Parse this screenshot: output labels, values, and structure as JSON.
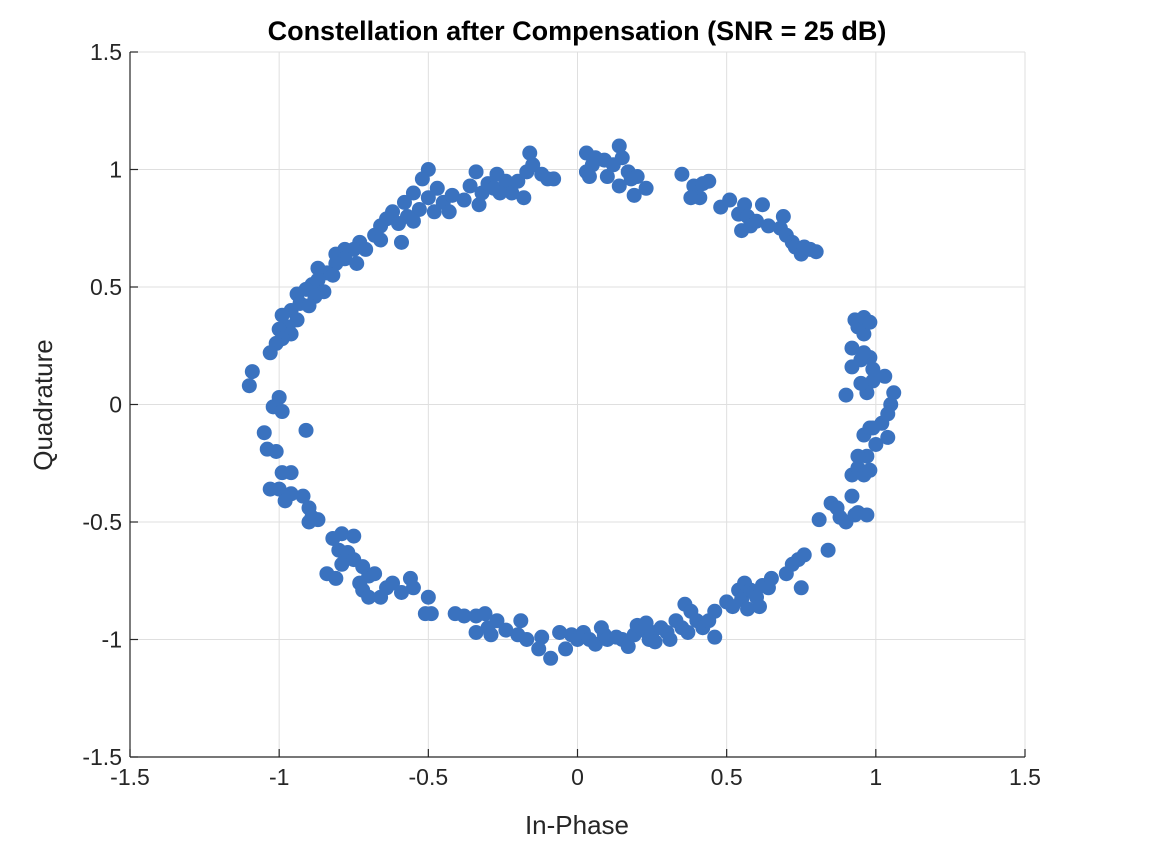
{
  "chart_data": {
    "type": "scatter",
    "title": "Constellation after Compensation (SNR = 25 dB)",
    "xlabel": "In-Phase",
    "ylabel": "Quadrature",
    "xlim": [
      -1.5,
      1.5
    ],
    "ylim": [
      -1.5,
      1.5
    ],
    "xticks": [
      -1.5,
      -1,
      -0.5,
      0,
      0.5,
      1,
      1.5
    ],
    "yticks": [
      -1.5,
      -1,
      -0.5,
      0,
      0.5,
      1,
      1.5
    ],
    "xtick_labels": [
      "-1.5",
      "-1",
      "-0.5",
      "0",
      "0.5",
      "1",
      "1.5"
    ],
    "ytick_labels": [
      "-1.5",
      "-1",
      "-0.5",
      "0",
      "0.5",
      "1",
      "1.5"
    ],
    "grid": true,
    "color": "#3a72bf",
    "series": [
      {
        "points": [
          [
            -0.5,
            1.0
          ],
          [
            -0.52,
            0.96
          ],
          [
            -0.47,
            0.92
          ],
          [
            -0.55,
            0.9
          ],
          [
            -0.5,
            0.88
          ],
          [
            -0.45,
            0.86
          ],
          [
            -0.58,
            0.86
          ],
          [
            -0.53,
            0.83
          ],
          [
            -0.48,
            0.82
          ],
          [
            -0.43,
            0.82
          ],
          [
            -0.57,
            0.8
          ],
          [
            -0.62,
            0.82
          ],
          [
            -0.64,
            0.79
          ],
          [
            -0.6,
            0.77
          ],
          [
            -0.66,
            0.76
          ],
          [
            -0.55,
            0.78
          ],
          [
            -0.68,
            0.72
          ],
          [
            -0.66,
            0.7
          ],
          [
            -0.59,
            0.69
          ],
          [
            -0.73,
            0.69
          ],
          [
            -0.75,
            0.66
          ],
          [
            -0.71,
            0.66
          ],
          [
            -0.78,
            0.66
          ],
          [
            -0.81,
            0.64
          ],
          [
            -0.78,
            0.62
          ],
          [
            -0.74,
            0.6
          ],
          [
            -0.81,
            0.6
          ],
          [
            -0.84,
            0.56
          ],
          [
            -0.87,
            0.58
          ],
          [
            -0.82,
            0.55
          ],
          [
            -0.87,
            0.53
          ],
          [
            -0.89,
            0.51
          ],
          [
            -0.91,
            0.49
          ],
          [
            -0.85,
            0.48
          ],
          [
            -0.88,
            0.46
          ],
          [
            -0.94,
            0.47
          ],
          [
            -0.93,
            0.43
          ],
          [
            -0.9,
            0.42
          ],
          [
            -0.96,
            0.4
          ],
          [
            -0.99,
            0.38
          ],
          [
            -0.94,
            0.36
          ],
          [
            -0.97,
            0.33
          ],
          [
            -1.0,
            0.32
          ],
          [
            -0.96,
            0.3
          ],
          [
            -0.99,
            0.28
          ],
          [
            -1.01,
            0.26
          ],
          [
            -1.03,
            0.22
          ],
          [
            -1.09,
            0.14
          ],
          [
            -1.1,
            0.08
          ],
          [
            -1.0,
            0.03
          ],
          [
            -1.02,
            -0.01
          ],
          [
            -0.99,
            -0.03
          ],
          [
            -0.91,
            -0.11
          ],
          [
            -1.05,
            -0.12
          ],
          [
            -1.04,
            -0.19
          ],
          [
            -1.01,
            -0.2
          ],
          [
            -0.99,
            -0.29
          ],
          [
            -0.96,
            -0.29
          ],
          [
            -1.0,
            -0.36
          ],
          [
            -1.03,
            -0.36
          ],
          [
            -0.96,
            -0.38
          ],
          [
            -0.98,
            -0.41
          ],
          [
            -0.92,
            -0.39
          ],
          [
            -0.9,
            -0.44
          ],
          [
            -0.89,
            -0.48
          ],
          [
            -0.87,
            -0.49
          ],
          [
            -0.9,
            -0.5
          ],
          [
            -0.79,
            -0.55
          ],
          [
            -0.82,
            -0.57
          ],
          [
            -0.75,
            -0.56
          ],
          [
            -0.8,
            -0.62
          ],
          [
            -0.77,
            -0.63
          ],
          [
            -0.75,
            -0.66
          ],
          [
            -0.79,
            -0.68
          ],
          [
            -0.72,
            -0.69
          ],
          [
            -0.84,
            -0.72
          ],
          [
            -0.81,
            -0.74
          ],
          [
            -0.7,
            -0.73
          ],
          [
            -0.68,
            -0.72
          ],
          [
            -0.73,
            -0.76
          ],
          [
            -0.72,
            -0.79
          ],
          [
            -0.7,
            -0.82
          ],
          [
            -0.66,
            -0.82
          ],
          [
            -0.64,
            -0.78
          ],
          [
            -0.62,
            -0.76
          ],
          [
            -0.56,
            -0.74
          ],
          [
            -0.59,
            -0.8
          ],
          [
            -0.55,
            -0.78
          ],
          [
            -0.5,
            -0.82
          ],
          [
            -0.49,
            -0.89
          ],
          [
            -0.51,
            -0.89
          ],
          [
            -0.41,
            -0.89
          ],
          [
            -0.38,
            -0.9
          ],
          [
            -0.34,
            -0.9
          ],
          [
            -0.31,
            -0.89
          ],
          [
            -0.3,
            -0.95
          ],
          [
            -0.27,
            -0.92
          ],
          [
            -0.34,
            -0.97
          ],
          [
            -0.29,
            -0.98
          ],
          [
            -0.24,
            -0.96
          ],
          [
            -0.19,
            -0.92
          ],
          [
            -0.2,
            -0.98
          ],
          [
            -0.17,
            -1.0
          ],
          [
            -0.12,
            -0.99
          ],
          [
            -0.13,
            -1.04
          ],
          [
            -0.09,
            -1.08
          ],
          [
            -0.06,
            -0.97
          ],
          [
            -0.02,
            -0.98
          ],
          [
            0.0,
            -1.0
          ],
          [
            -0.04,
            -1.04
          ],
          [
            0.02,
            -0.97
          ],
          [
            0.04,
            -1.0
          ],
          [
            0.06,
            -1.02
          ],
          [
            0.08,
            -0.95
          ],
          [
            0.09,
            -0.98
          ],
          [
            0.1,
            -1.0
          ],
          [
            0.13,
            -0.99
          ],
          [
            0.15,
            -1.0
          ],
          [
            0.17,
            -1.03
          ],
          [
            0.19,
            -0.98
          ],
          [
            0.2,
            -0.94
          ],
          [
            0.22,
            -0.96
          ],
          [
            0.24,
            -1.0
          ],
          [
            0.25,
            -0.97
          ],
          [
            0.26,
            -1.01
          ],
          [
            0.23,
            -0.93
          ],
          [
            0.28,
            -0.95
          ],
          [
            0.3,
            -0.97
          ],
          [
            0.31,
            -1.0
          ],
          [
            0.33,
            -0.92
          ],
          [
            0.35,
            -0.95
          ],
          [
            0.37,
            -0.97
          ],
          [
            0.36,
            -0.85
          ],
          [
            0.38,
            -0.88
          ],
          [
            0.4,
            -0.92
          ],
          [
            0.42,
            -0.95
          ],
          [
            0.46,
            -0.99
          ],
          [
            0.44,
            -0.92
          ],
          [
            0.46,
            -0.88
          ],
          [
            0.5,
            -0.84
          ],
          [
            0.52,
            -0.86
          ],
          [
            0.54,
            -0.79
          ],
          [
            0.55,
            -0.83
          ],
          [
            0.56,
            -0.76
          ],
          [
            0.58,
            -0.79
          ],
          [
            0.59,
            -0.8
          ],
          [
            0.6,
            -0.82
          ],
          [
            0.61,
            -0.86
          ],
          [
            0.62,
            -0.77
          ],
          [
            0.64,
            -0.78
          ],
          [
            0.57,
            -0.87
          ],
          [
            0.65,
            -0.74
          ],
          [
            0.7,
            -0.72
          ],
          [
            0.72,
            -0.68
          ],
          [
            0.74,
            -0.66
          ],
          [
            0.76,
            -0.64
          ],
          [
            0.75,
            -0.78
          ],
          [
            0.81,
            -0.49
          ],
          [
            0.85,
            -0.42
          ],
          [
            0.84,
            -0.62
          ],
          [
            0.87,
            -0.44
          ],
          [
            0.88,
            -0.48
          ],
          [
            0.9,
            -0.5
          ],
          [
            0.93,
            -0.47
          ],
          [
            0.92,
            -0.39
          ],
          [
            0.94,
            -0.46
          ],
          [
            0.97,
            -0.47
          ],
          [
            0.92,
            -0.3
          ],
          [
            0.94,
            -0.27
          ],
          [
            0.96,
            -0.3
          ],
          [
            0.97,
            -0.22
          ],
          [
            0.98,
            -0.28
          ],
          [
            0.94,
            -0.22
          ],
          [
            0.96,
            -0.13
          ],
          [
            0.98,
            -0.1
          ],
          [
            1.0,
            -0.17
          ],
          [
            0.99,
            -0.1
          ],
          [
            1.02,
            -0.08
          ],
          [
            1.04,
            -0.14
          ],
          [
            1.05,
            0.0
          ],
          [
            1.04,
            -0.04
          ],
          [
            1.06,
            0.05
          ],
          [
            1.03,
            0.12
          ],
          [
            0.99,
            0.1
          ],
          [
            0.97,
            0.05
          ],
          [
            0.95,
            0.09
          ],
          [
            0.92,
            0.16
          ],
          [
            0.95,
            0.19
          ],
          [
            0.98,
            0.2
          ],
          [
            0.96,
            0.22
          ],
          [
            0.92,
            0.24
          ],
          [
            0.99,
            0.15
          ],
          [
            0.9,
            0.04
          ],
          [
            0.96,
            0.3
          ],
          [
            0.94,
            0.33
          ],
          [
            0.93,
            0.36
          ],
          [
            0.96,
            0.37
          ],
          [
            0.98,
            0.35
          ],
          [
            0.03,
            1.07
          ],
          [
            0.06,
            1.05
          ],
          [
            0.09,
            1.04
          ],
          [
            0.05,
            1.02
          ],
          [
            0.03,
            0.99
          ],
          [
            0.04,
            0.97
          ],
          [
            0.1,
            0.97
          ],
          [
            0.12,
            1.02
          ],
          [
            0.14,
            1.1
          ],
          [
            0.15,
            1.05
          ],
          [
            0.17,
            0.99
          ],
          [
            0.18,
            0.96
          ],
          [
            0.19,
            0.89
          ],
          [
            0.2,
            0.97
          ],
          [
            0.23,
            0.92
          ],
          [
            0.14,
            0.93
          ],
          [
            0.35,
            0.98
          ],
          [
            0.39,
            0.93
          ],
          [
            0.42,
            0.94
          ],
          [
            0.44,
            0.95
          ],
          [
            0.41,
            0.88
          ],
          [
            0.38,
            0.88
          ],
          [
            0.48,
            0.84
          ],
          [
            0.51,
            0.87
          ],
          [
            0.54,
            0.81
          ],
          [
            0.56,
            0.85
          ],
          [
            0.57,
            0.8
          ],
          [
            0.58,
            0.76
          ],
          [
            0.6,
            0.78
          ],
          [
            0.62,
            0.85
          ],
          [
            0.55,
            0.74
          ],
          [
            0.64,
            0.76
          ],
          [
            0.68,
            0.75
          ],
          [
            0.69,
            0.8
          ],
          [
            0.7,
            0.72
          ],
          [
            0.72,
            0.69
          ],
          [
            0.73,
            0.67
          ],
          [
            0.75,
            0.64
          ],
          [
            0.76,
            0.67
          ],
          [
            0.78,
            0.66
          ],
          [
            0.8,
            0.65
          ],
          [
            -0.42,
            0.89
          ],
          [
            -0.38,
            0.87
          ],
          [
            -0.32,
            0.9
          ],
          [
            -0.33,
            0.85
          ],
          [
            -0.3,
            0.94
          ],
          [
            -0.28,
            0.92
          ],
          [
            -0.27,
            0.98
          ],
          [
            -0.24,
            0.95
          ],
          [
            -0.22,
            0.9
          ],
          [
            -0.2,
            0.95
          ],
          [
            -0.17,
            0.99
          ],
          [
            -0.16,
            1.07
          ],
          [
            -0.15,
            1.02
          ],
          [
            -0.12,
            0.98
          ],
          [
            -0.1,
            0.96
          ],
          [
            -0.08,
            0.96
          ],
          [
            -0.34,
            0.99
          ],
          [
            -0.36,
            0.93
          ],
          [
            -0.26,
            0.9
          ],
          [
            -0.18,
            0.88
          ]
        ]
      }
    ]
  }
}
